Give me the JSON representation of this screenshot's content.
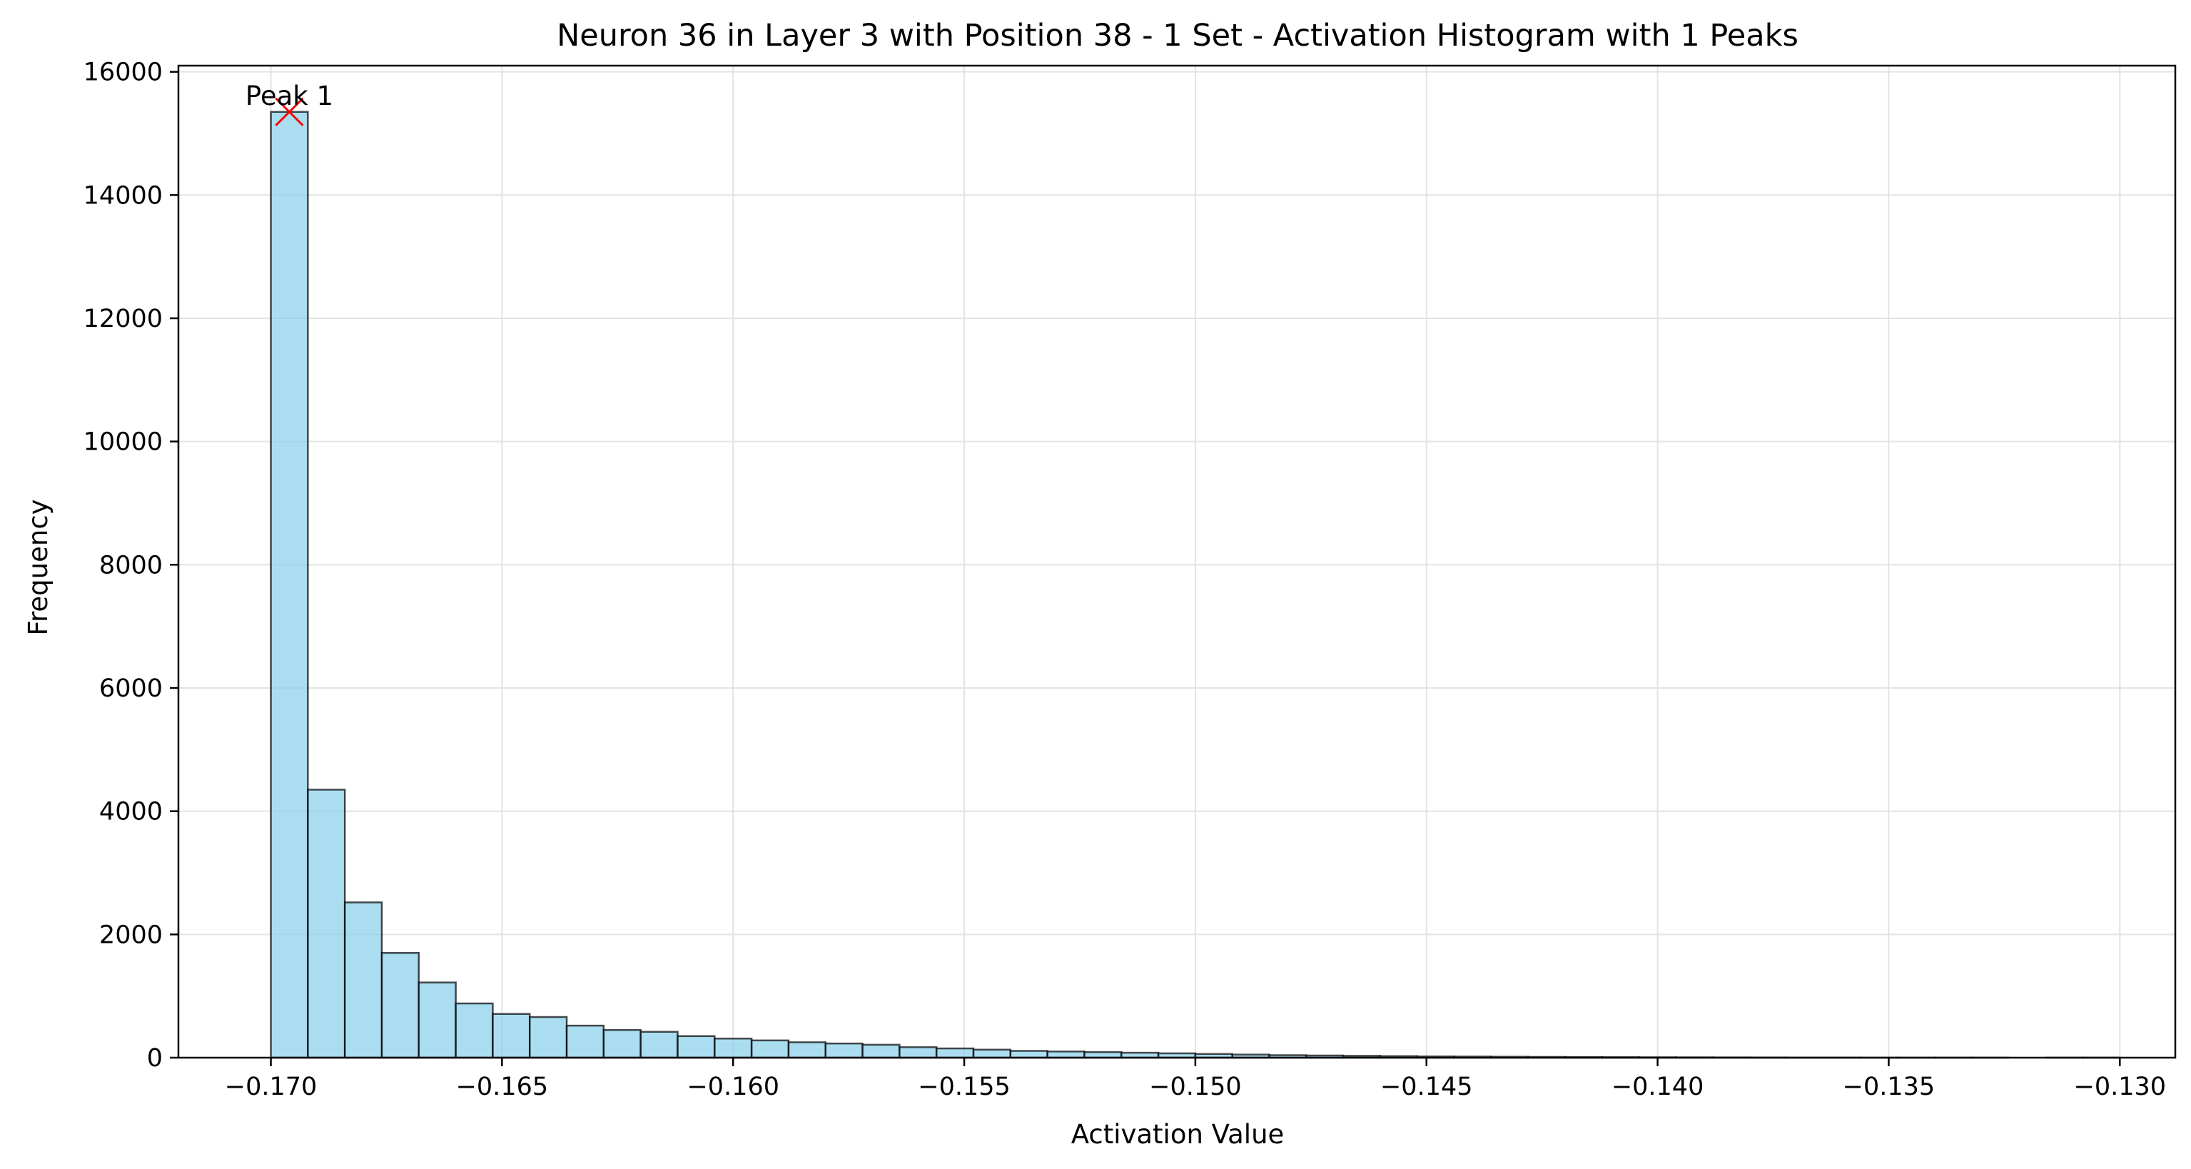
{
  "chart_data": {
    "type": "bar",
    "title": "Neuron 36 in Layer 3 with Position 38 - 1 Set - Activation Histogram with 1 Peaks",
    "xlabel": "Activation Value",
    "ylabel": "Frequency",
    "xlim": [
      -0.172,
      -0.1288
    ],
    "ylim": [
      0,
      16100
    ],
    "xticks": [
      -0.17,
      -0.165,
      -0.16,
      -0.155,
      -0.15,
      -0.145,
      -0.14,
      -0.135,
      -0.13
    ],
    "xtick_labels": [
      "−0.170",
      "−0.165",
      "−0.160",
      "−0.155",
      "−0.150",
      "−0.145",
      "−0.140",
      "−0.135",
      "−0.130"
    ],
    "yticks": [
      0,
      2000,
      4000,
      6000,
      8000,
      10000,
      12000,
      14000,
      16000
    ],
    "ytick_labels": [
      "0",
      "2000",
      "4000",
      "6000",
      "8000",
      "10000",
      "12000",
      "14000",
      "16000"
    ],
    "grid": true,
    "bins": {
      "start": -0.17,
      "end": -0.13,
      "width": 0.0008,
      "counts": [
        15350,
        4350,
        2520,
        1700,
        1220,
        880,
        710,
        660,
        520,
        450,
        420,
        350,
        310,
        280,
        250,
        230,
        210,
        170,
        150,
        130,
        110,
        100,
        90,
        80,
        70,
        60,
        50,
        40,
        35,
        30,
        25,
        20,
        18,
        15,
        12,
        10,
        8,
        6,
        5,
        4,
        3,
        2,
        2,
        1,
        1,
        1,
        1,
        0,
        1,
        1
      ]
    },
    "peaks": [
      {
        "label": "Peak 1",
        "x": -0.1696,
        "y": 15350
      }
    ],
    "colors": {
      "bar_fill": "#87ceeb",
      "bar_edge": "#000000",
      "peak_marker": "#ff0000",
      "grid": "#e3e3e3"
    }
  }
}
